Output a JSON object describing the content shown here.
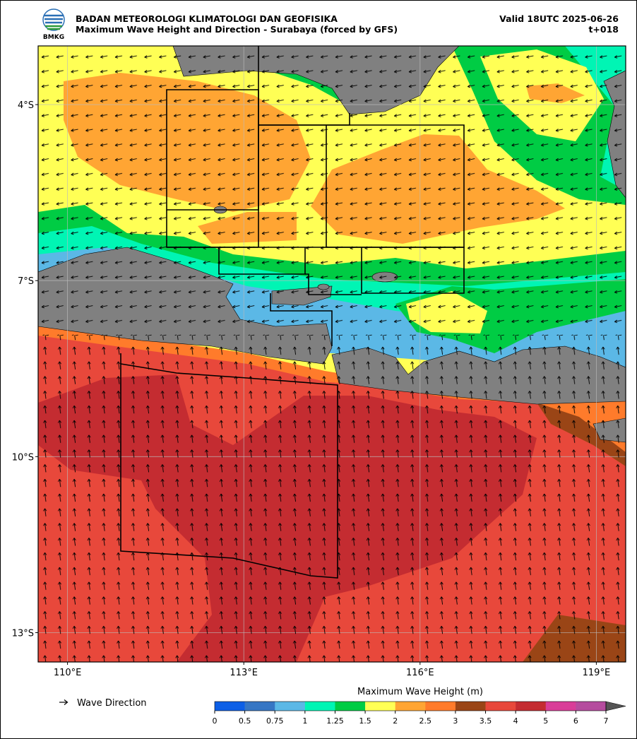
{
  "header": {
    "logo_text": "BMKG",
    "title": "BADAN METEOROLOGI KLIMATOLOGI DAN GEOFISIKA",
    "subtitle": "Maximum Wave Height and Direction - Surabaya (forced by GFS)",
    "valid": "Valid 18UTC 2025-06-26",
    "lead_time": "t+018"
  },
  "map": {
    "lonlim": [
      109.5,
      119.5
    ],
    "latlim": [
      -13.5,
      -3
    ],
    "grid": true,
    "lon_ticks": [
      {
        "value": 110,
        "label": "110°E"
      },
      {
        "value": 113,
        "label": "113°E"
      },
      {
        "value": 116,
        "label": "116°E"
      },
      {
        "value": 119,
        "label": "119°E"
      }
    ],
    "lat_ticks": [
      {
        "value": -4,
        "label": "4°S"
      },
      {
        "value": -7,
        "label": "7°S"
      },
      {
        "value": -10,
        "label": "10°S"
      },
      {
        "value": -13,
        "label": "13°S"
      }
    ]
  },
  "legend": {
    "label": "Wave Direction"
  },
  "colorbar": {
    "title": "Maximum Wave Height (m)",
    "ticks": [
      0,
      0.5,
      0.75,
      1,
      1.25,
      1.5,
      2,
      2.5,
      3,
      3.5,
      4,
      5,
      6,
      7
    ],
    "colors": [
      "#0d5fe6",
      "#3676c4",
      "#5bb8e6",
      "#00f5b4",
      "#00cc44",
      "#ffff55",
      "#ffa533",
      "#ff7b2b",
      "#9a4516",
      "#e8483b",
      "#c42c31",
      "#d93d98",
      "#b54c9e"
    ],
    "extend_color": "#555555"
  }
}
